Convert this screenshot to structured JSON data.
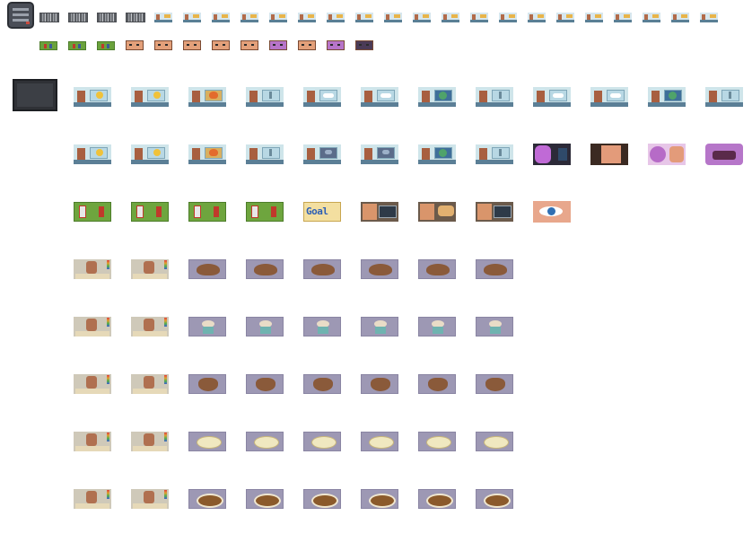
{
  "canvas": {
    "background": "#ffffff"
  },
  "sprite_sheet": {
    "row1": {
      "noise_count": 4,
      "news_count": 20
    },
    "row2": {
      "soccer_count": 3,
      "face_count": 8
    },
    "goal_tile": {
      "text": "Goal"
    },
    "rows": [
      "weather-news-1",
      "weather-news-2",
      "soccer",
      "cooking-croissant",
      "cooking-cupcake",
      "cooking-heart-cookie",
      "cooking-soup",
      "cooking-stew"
    ]
  }
}
